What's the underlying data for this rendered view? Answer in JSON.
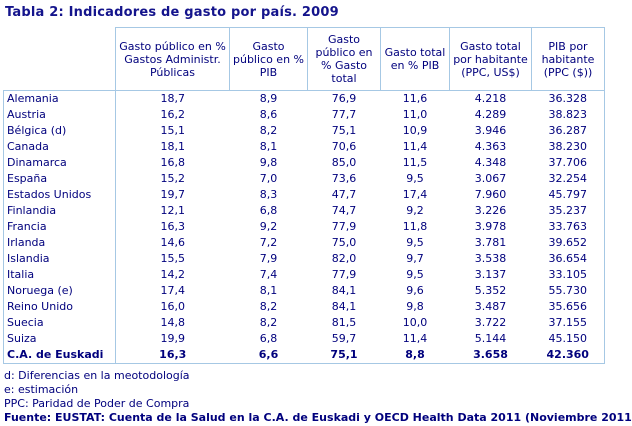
{
  "title": "Tabla 2: Indicadores de gasto por país. 2009",
  "colors": {
    "text_navy": "#00007d",
    "title_navy": "#14148c",
    "border_light_blue": "#a6c8e4",
    "background": "#ffffff"
  },
  "table": {
    "corner_label": "",
    "columns": [
      "",
      "Gasto público en % Gastos Administr. Públicas",
      "Gasto público en % PIB",
      "Gasto público en % Gasto total",
      "Gasto total en % PIB",
      "Gasto total por habitante (PPC, US$)",
      "PIB por habitante (PPC ($))"
    ],
    "rows": [
      {
        "country": "Alemania",
        "values": [
          "18,7",
          "8,9",
          "76,9",
          "11,6",
          "4.218",
          "36.328"
        ],
        "bold": false
      },
      {
        "country": "Austria",
        "values": [
          "16,2",
          "8,6",
          "77,7",
          "11,0",
          "4.289",
          "38.823"
        ],
        "bold": false
      },
      {
        "country": "Bélgica (d)",
        "values": [
          "15,1",
          "8,2",
          "75,1",
          "10,9",
          "3.946",
          "36.287"
        ],
        "bold": false
      },
      {
        "country": "Canada",
        "values": [
          "18,1",
          "8,1",
          "70,6",
          "11,4",
          "4.363",
          "38.230"
        ],
        "bold": false
      },
      {
        "country": "Dinamarca",
        "values": [
          "16,8",
          "9,8",
          "85,0",
          "11,5",
          "4.348",
          "37.706"
        ],
        "bold": false
      },
      {
        "country": "España",
        "values": [
          "15,2",
          "7,0",
          "73,6",
          "9,5",
          "3.067",
          "32.254"
        ],
        "bold": false
      },
      {
        "country": "Estados Unidos",
        "values": [
          "19,7",
          "8,3",
          "47,7",
          "17,4",
          "7.960",
          "45.797"
        ],
        "bold": false
      },
      {
        "country": "Finlandia",
        "values": [
          "12,1",
          "6,8",
          "74,7",
          "9,2",
          "3.226",
          "35.237"
        ],
        "bold": false
      },
      {
        "country": "Francia",
        "values": [
          "16,3",
          "9,2",
          "77,9",
          "11,8",
          "3.978",
          "33.763"
        ],
        "bold": false
      },
      {
        "country": "Irlanda",
        "values": [
          "14,6",
          "7,2",
          "75,0",
          "9,5",
          "3.781",
          "39.652"
        ],
        "bold": false
      },
      {
        "country": "Islandia",
        "values": [
          "15,5",
          "7,9",
          "82,0",
          "9,7",
          "3.538",
          "36.654"
        ],
        "bold": false
      },
      {
        "country": "Italia",
        "values": [
          "14,2",
          "7,4",
          "77,9",
          "9,5",
          "3.137",
          "33.105"
        ],
        "bold": false
      },
      {
        "country": "Noruega (e)",
        "values": [
          "17,4",
          "8,1",
          "84,1",
          "9,6",
          "5.352",
          "55.730"
        ],
        "bold": false
      },
      {
        "country": "Reino Unido",
        "values": [
          "16,0",
          "8,2",
          "84,1",
          "9,8",
          "3.487",
          "35.656"
        ],
        "bold": false
      },
      {
        "country": "Suecia",
        "values": [
          "14,8",
          "8,2",
          "81,5",
          "10,0",
          "3.722",
          "37.155"
        ],
        "bold": false
      },
      {
        "country": "Suiza",
        "values": [
          "19,9",
          "6,8",
          "59,7",
          "11,4",
          "5.144",
          "45.150"
        ],
        "bold": false
      },
      {
        "country": "C.A. de Euskadi",
        "values": [
          "16,3",
          "6,6",
          "75,1",
          "8,8",
          "3.658",
          "42.360"
        ],
        "bold": true
      }
    ]
  },
  "notes": [
    "d: Diferencias en la meotodología",
    "e: estimación",
    "PPC: Paridad de Poder de Compra"
  ],
  "source": "Fuente: EUSTAT: Cuenta de la Salud en la C.A. de Euskadi y OECD Health Data 2011 (Noviembre 2011"
}
